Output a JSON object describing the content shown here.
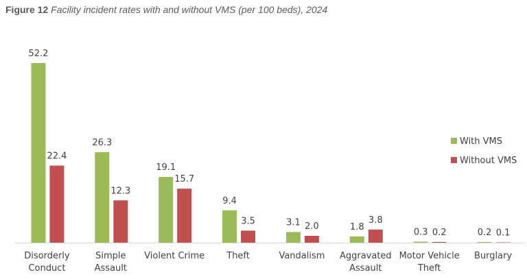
{
  "chart_data": {
    "type": "bar",
    "title_label": "Figure 12",
    "title": "Facility incident rates with and without VMS (per 100 beds), 2024",
    "categories": [
      "Disorderly Conduct",
      "Simple Assault",
      "Violent Crime",
      "Theft",
      "Vandalism",
      "Aggravated Assault",
      "Motor Vehicle Theft",
      "Burglary"
    ],
    "series": [
      {
        "name": "With VMS",
        "color": "#9bbb59",
        "values": [
          52.2,
          26.3,
          19.1,
          9.4,
          3.1,
          1.8,
          0.3,
          0.2
        ],
        "value_labels": [
          "52.2",
          "26.3",
          "19.1",
          "9.4",
          "3.1",
          "1.8",
          "0.3",
          "0.2"
        ]
      },
      {
        "name": "Without VMS",
        "color": "#c0504d",
        "values": [
          22.4,
          12.3,
          15.7,
          3.5,
          2.0,
          3.8,
          0.2,
          0.1
        ],
        "value_labels": [
          "22.4",
          "12.3",
          "15.7",
          "3.5",
          "2.0",
          "3.8",
          "0.2",
          "0.1"
        ]
      }
    ],
    "legend": "right"
  }
}
